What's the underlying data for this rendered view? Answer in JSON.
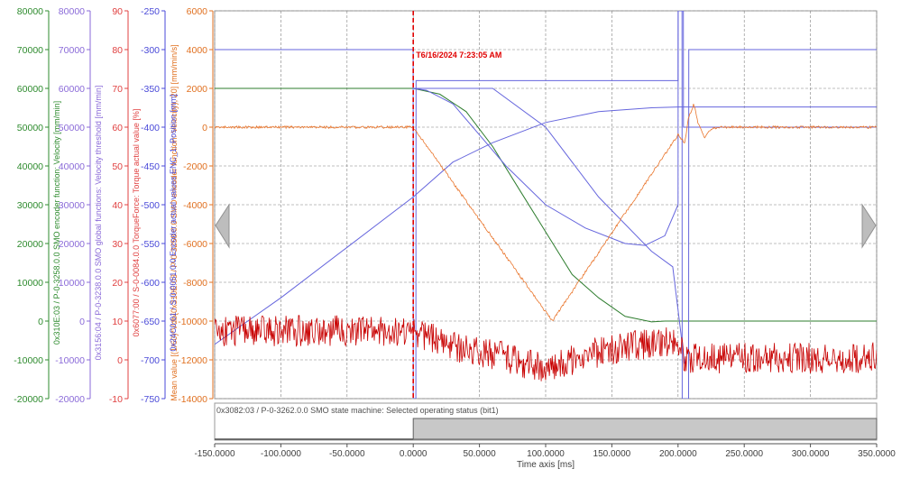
{
  "chart_data": {
    "type": "line",
    "cursor": {
      "x": 0,
      "label": "T6/16/2024 7:23:05 AM",
      "color": "#e00000"
    },
    "x_axis": {
      "label": "Time axis [ms]",
      "range": [
        -150,
        350
      ],
      "ticks": [
        "-150.0000",
        "-100.0000",
        "-50.0000",
        "0.0000",
        "50.0000",
        "100.0000",
        "150.0000",
        "200.0000",
        "250.0000",
        "300.0000",
        "350.0000"
      ]
    },
    "main_axis": {
      "label": "Mean value [(1/60)*Vdb(0x310E:03 / P-0-3258.0.0 SMO encoder function: Velocity), 20] [mm/min/s]",
      "range": [
        -14000,
        6000
      ],
      "ticks": [
        "6000",
        "4000",
        "2000",
        "0",
        "-2000",
        "-4000",
        "-6000",
        "-8000",
        "-10000",
        "-12000",
        "-14000"
      ],
      "color": "#e07020"
    },
    "y_axes": [
      {
        "label": "0x310E:03 / P-0-3258.0.0 SMO encoder function: Velocity [mm/min]",
        "color": "#2e8b2e",
        "range": [
          -20000,
          80000
        ],
        "ticks": [
          "80000",
          "70000",
          "60000",
          "50000",
          "40000",
          "30000",
          "20000",
          "10000",
          "0",
          "-10000",
          "-20000"
        ]
      },
      {
        "label": "0x3156:04 / P-0-3238.0.0 SMO global functions: Velocity threshold [mm/min]",
        "color": "#8a6ad8",
        "range": [
          -20000,
          80000
        ],
        "ticks": [
          "80000",
          "70000",
          "60000",
          "50000",
          "40000",
          "30000",
          "20000",
          "10000",
          "0",
          "-10000",
          "-20000"
        ]
      },
      {
        "label": "0x6077:00 / S-0-0084.0.0 TorqueForce: Torque actual value [%]",
        "color": "#e04040",
        "range": [
          -10,
          90
        ],
        "ticks": [
          "90",
          "80",
          "70",
          "60",
          "50",
          "40",
          "30",
          "20",
          "10",
          "0",
          "-10"
        ]
      },
      {
        "label": "0x24C0:01 / S-0-0051.0.0 Encoder actual values ENC_1: Position [mm]",
        "color": "#4a4ad8",
        "range": [
          -750,
          -250
        ],
        "ticks": [
          "-250",
          "-300",
          "-350",
          "-400",
          "-450",
          "-500",
          "-550",
          "-600",
          "-650",
          "-700",
          "-750"
        ]
      }
    ],
    "series": [
      {
        "color": "#2e7d2e",
        "axis": 0,
        "x": [
          -150,
          0,
          20,
          40,
          60,
          80,
          100,
          120,
          140,
          160,
          180,
          190,
          200,
          350
        ],
        "y": [
          60000,
          60000,
          58500,
          54000,
          45000,
          34000,
          23000,
          12000,
          6000,
          1200,
          -200,
          0,
          0,
          0
        ]
      },
      {
        "color": "#6666dd",
        "axis": 1,
        "x": [
          -150,
          -0.1,
          0,
          2,
          2.1,
          200,
          200.1,
          203,
          203.1,
          208,
          208.1,
          350
        ],
        "y": [
          70000,
          70000,
          -20000,
          -20000,
          62000,
          62000,
          80000,
          80000,
          -20000,
          -20000,
          70000,
          70000
        ]
      },
      {
        "color": "#6666dd",
        "axis": 1,
        "x": [
          0,
          10,
          30,
          50,
          70,
          100,
          130,
          160,
          175,
          190,
          200,
          200.1,
          204,
          204.1,
          350
        ],
        "y": [
          60000,
          59500,
          56000,
          48000,
          40000,
          30000,
          24000,
          20000,
          19500,
          22000,
          30000,
          80000,
          80000,
          50000,
          50000
        ]
      },
      {
        "color": "#6666dd",
        "axis": 3,
        "x": [
          -150,
          -100,
          -50,
          0,
          30,
          60,
          100,
          140,
          180,
          200,
          230,
          300,
          350
        ],
        "y": [
          -680,
          -620,
          -555,
          -490,
          -445,
          -420,
          -394,
          -380,
          -375,
          -374,
          -374,
          -374,
          -374
        ]
      },
      {
        "color": "#6666dd",
        "axis": 1,
        "x": [
          0,
          2,
          10,
          60,
          100,
          140,
          180,
          196,
          205
        ],
        "y": [
          60000,
          60000,
          60000,
          60000,
          50000,
          32000,
          18000,
          14000,
          -11000
        ]
      },
      {
        "color": "#e9742a",
        "axis": -1,
        "noise": 60,
        "x": [
          -150,
          0,
          105,
          200,
          205,
          208,
          212,
          215,
          220,
          225,
          232,
          240,
          350
        ],
        "y": [
          0,
          0,
          -10000,
          -400,
          -800,
          500,
          1200,
          200,
          -500,
          -100,
          0,
          0,
          0
        ]
      },
      {
        "color": "#c80000",
        "axis": -1,
        "noise": 800,
        "x": [
          -150,
          0,
          20,
          40,
          60,
          80,
          100,
          120,
          140,
          160,
          180,
          200,
          205,
          350
        ],
        "y": [
          -10500,
          -10500,
          -11000,
          -11500,
          -11700,
          -12100,
          -12500,
          -12000,
          -11600,
          -11400,
          -11100,
          -11000,
          -11900,
          -11900
        ]
      }
    ],
    "state_panel": {
      "label": "0x3082:03 / P-0-3262.0.0 SMO state machine: Selected operating status (bit1)",
      "x": [
        -150,
        0,
        0,
        350
      ],
      "y": [
        0,
        0,
        1,
        1
      ],
      "fill_color": "#c8c8c8"
    }
  }
}
